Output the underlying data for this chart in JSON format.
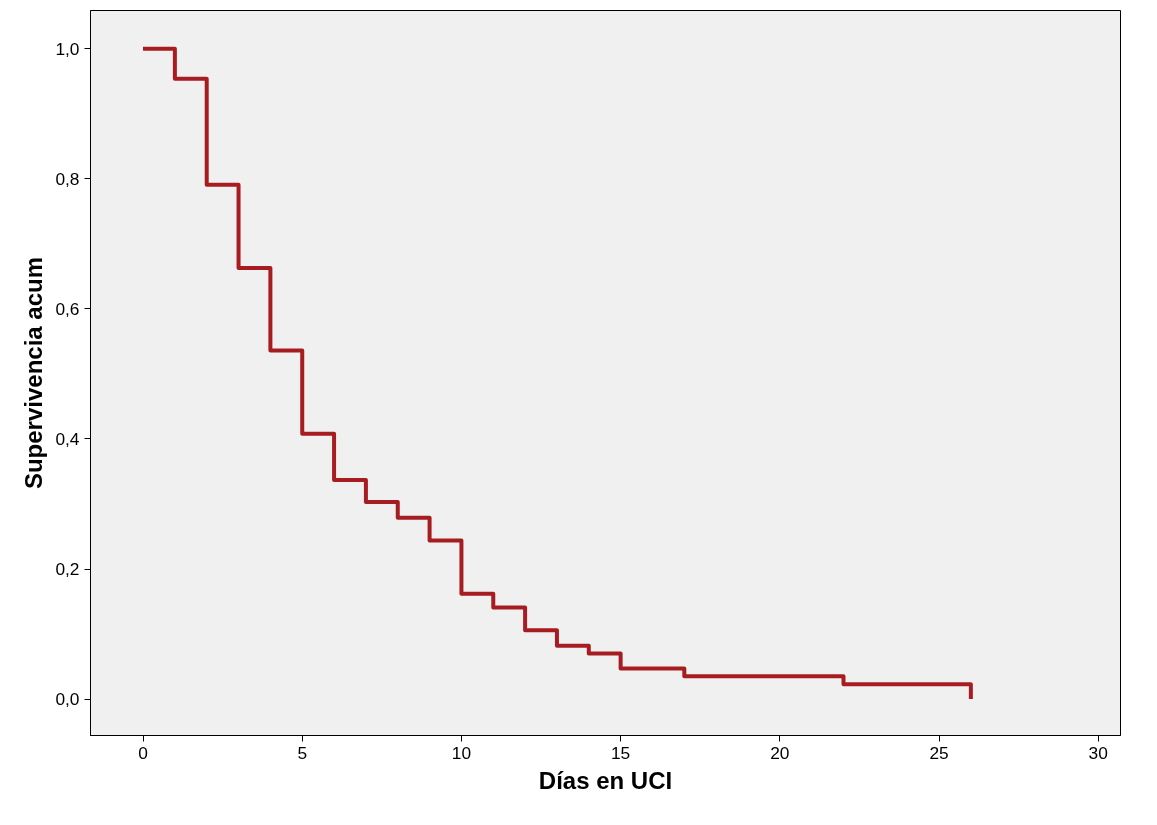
{
  "chart_data": {
    "type": "step",
    "xlabel": "Días en UCI",
    "ylabel": "Supervivencia acum",
    "x": [
      0,
      1,
      2,
      3,
      4,
      5,
      6,
      7,
      8,
      9,
      10,
      11,
      12,
      13,
      14,
      15,
      17,
      22,
      26
    ],
    "series": [
      {
        "color": "#a61c20",
        "values": [
          1.0,
          0.954,
          0.791,
          0.663,
          0.536,
          0.408,
          0.337,
          0.303,
          0.279,
          0.244,
          0.162,
          0.141,
          0.106,
          0.082,
          0.07,
          0.047,
          0.035,
          0.023,
          0.0
        ]
      }
    ],
    "xlim": [
      -1.65,
      30.7
    ],
    "ylim": [
      -0.056,
      1.059
    ],
    "xticks": [
      0,
      5,
      10,
      15,
      20,
      25,
      30
    ],
    "yticks": [
      {
        "value": 0,
        "label": "0,0"
      },
      {
        "value": 0.2,
        "label": "0,2"
      },
      {
        "value": 0.4,
        "label": "0,4"
      },
      {
        "value": 0.6,
        "label": "0,6"
      },
      {
        "value": 0.8,
        "label": "0,8"
      },
      {
        "value": 1.0,
        "label": "1,0"
      }
    ],
    "grid": false
  }
}
